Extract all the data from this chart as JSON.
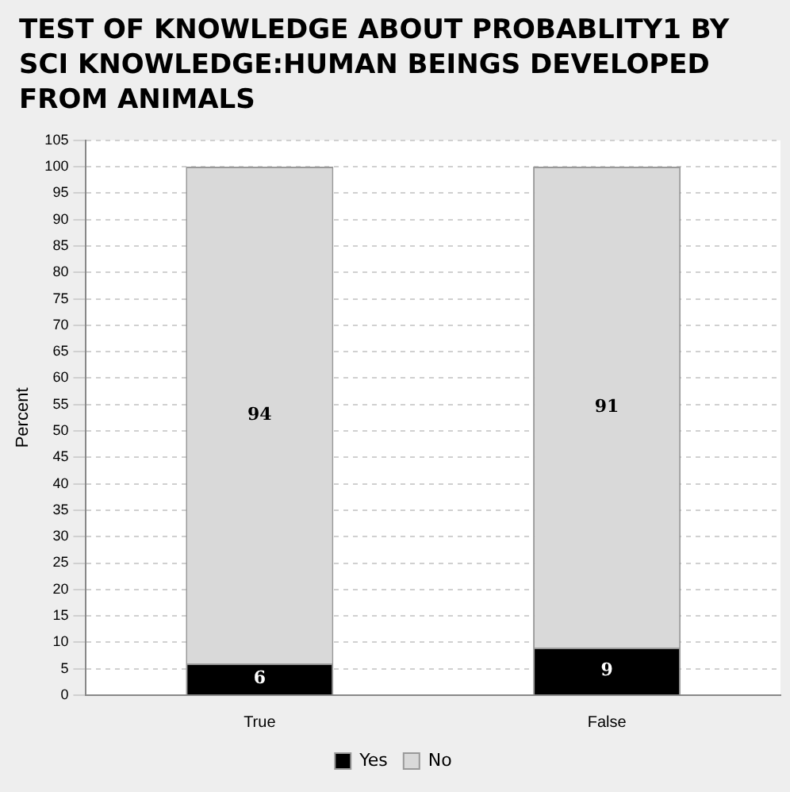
{
  "chart_data": {
    "type": "bar",
    "title": "TEST OF KNOWLEDGE ABOUT PROBABLITY1 BY SCI KNOWLEDGE:HUMAN BEINGS DEVELOPED FROM ANIMALS",
    "ylabel": "Percent",
    "categories": [
      "True",
      "False"
    ],
    "series": [
      {
        "name": "Yes",
        "color": "#000000",
        "values": [
          6,
          9
        ]
      },
      {
        "name": "No",
        "color": "#d9d9d9",
        "values": [
          94,
          91
        ]
      }
    ],
    "stacked": true,
    "data_labels": true,
    "ylim": [
      0,
      105
    ],
    "yticks": [
      0,
      5,
      10,
      15,
      20,
      25,
      30,
      35,
      40,
      45,
      50,
      55,
      60,
      65,
      70,
      75,
      80,
      85,
      90,
      95,
      100,
      105
    ],
    "grid": "y",
    "legend": "bottom"
  }
}
